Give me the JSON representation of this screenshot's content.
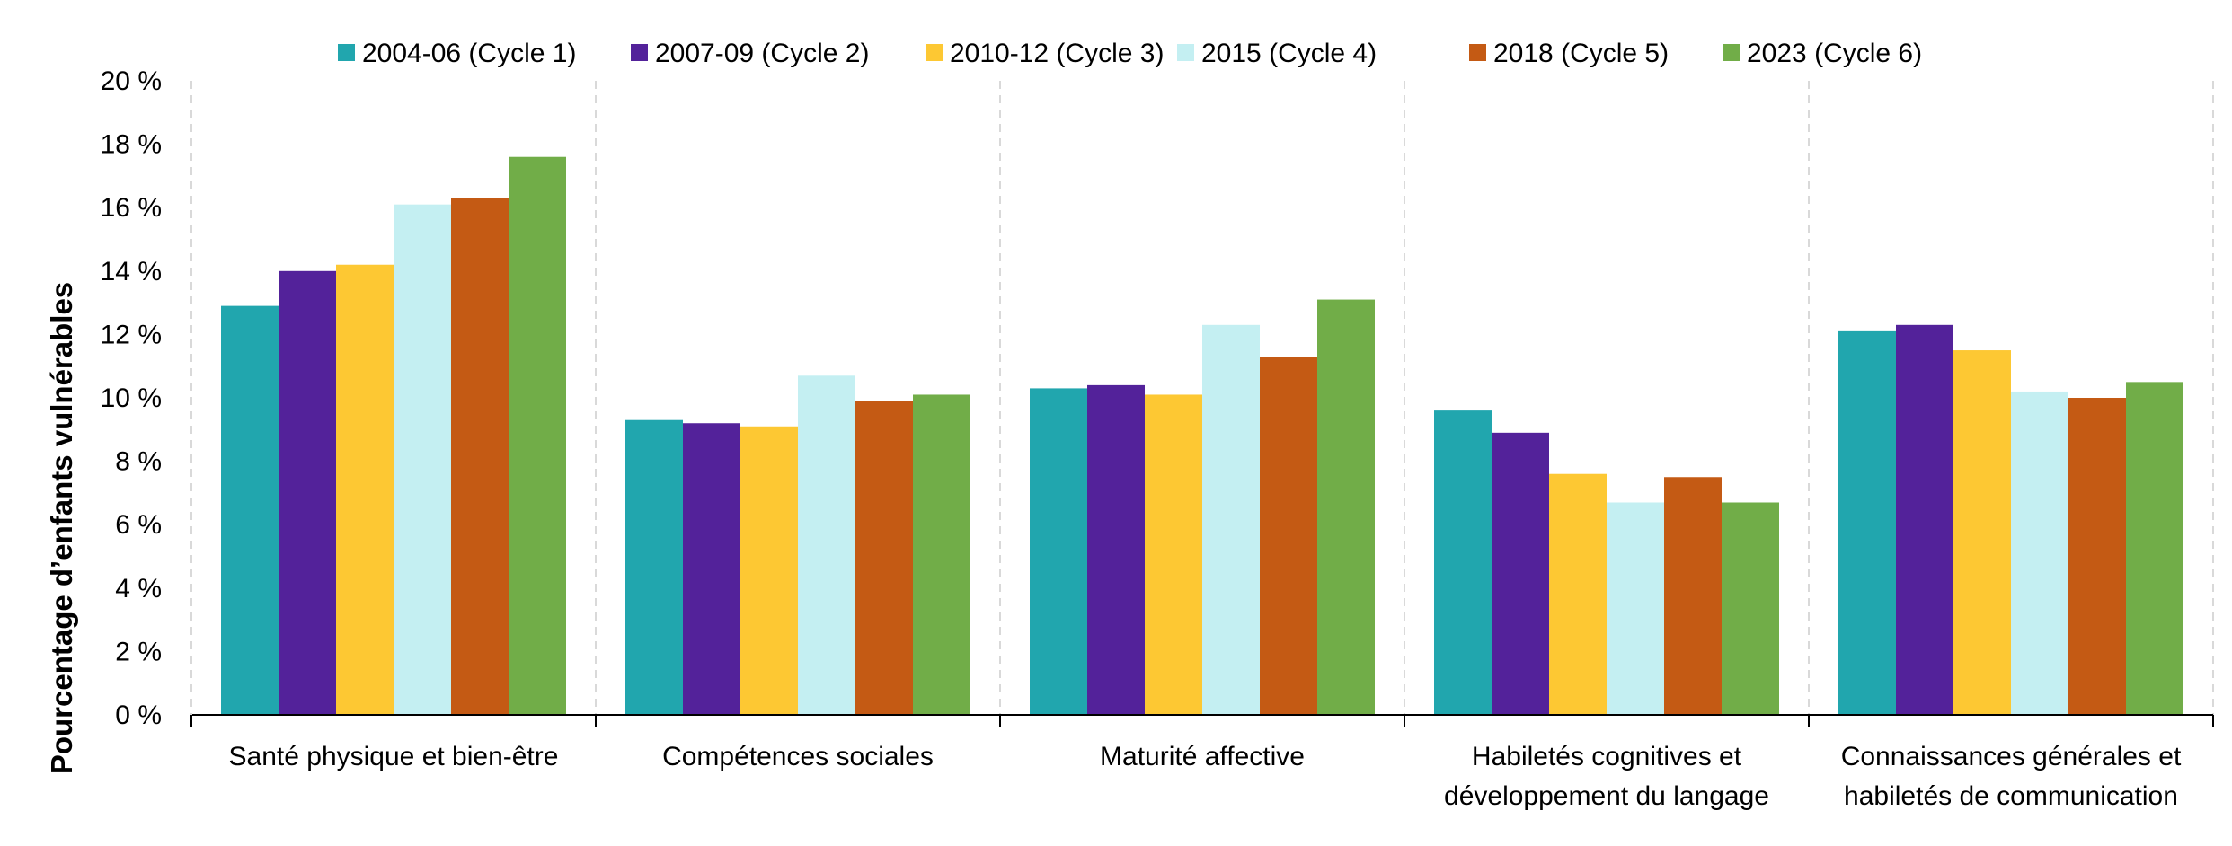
{
  "chart_data": {
    "type": "bar",
    "title": "",
    "xlabel": "",
    "ylabel": "Pourcentage d’enfants vulnérables",
    "ylim": [
      0,
      20
    ],
    "yticks": [
      0,
      2,
      4,
      6,
      8,
      10,
      12,
      14,
      16,
      18,
      20
    ],
    "ytick_labels": [
      "0 %",
      "2 %",
      "4 %",
      "6 %",
      "8 %",
      "10 %",
      "12 %",
      "14 %",
      "16 %",
      "18 %",
      "20 %"
    ],
    "legend_position": "top",
    "categories": [
      [
        "Santé physique et bien-être"
      ],
      [
        "Compétences sociales"
      ],
      [
        "Maturité affective"
      ],
      [
        "Habiletés cognitives et",
        "développement du langage"
      ],
      [
        "Connaissances générales et",
        "habiletés de communication"
      ]
    ],
    "series": [
      {
        "name": "2004-06 (Cycle 1)",
        "color": "#21A6AE",
        "values": [
          12.9,
          9.3,
          10.3,
          9.6,
          12.1
        ]
      },
      {
        "name": "2007-09 (Cycle 2)",
        "color": "#53229A",
        "values": [
          14.0,
          9.2,
          10.4,
          8.9,
          12.3
        ]
      },
      {
        "name": "2010-12 (Cycle 3)",
        "color": "#FDC833",
        "values": [
          14.2,
          9.1,
          10.1,
          7.6,
          11.5
        ]
      },
      {
        "name": "2015 (Cycle 4)",
        "color": "#C4EFF2",
        "values": [
          16.1,
          10.7,
          12.3,
          6.7,
          10.2
        ]
      },
      {
        "name": "2018 (Cycle 5)",
        "color": "#C45A14",
        "values": [
          16.3,
          9.9,
          11.3,
          7.5,
          10.0
        ]
      },
      {
        "name": "2023 (Cycle 6)",
        "color": "#71AD48",
        "values": [
          17.6,
          10.1,
          13.1,
          6.7,
          10.5
        ]
      }
    ]
  }
}
